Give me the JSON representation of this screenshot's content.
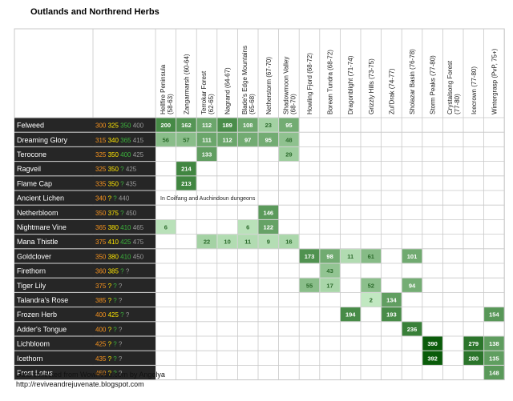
{
  "title": "Outlands and Northrend Herbs",
  "footer": {
    "line1": "Data collected from Wowhead.com by Angelya",
    "line2": "http://reviveandrejuvenate.blogspot.com"
  },
  "colors": {
    "row_label_bg": "#262626",
    "row_label_text": "#ffffff",
    "skill_orange": "#f7931e",
    "skill_yellow": "#ffe600",
    "skill_green": "#3cb43c",
    "skill_gray": "#9a9a9a",
    "grid_line": "#c8c8c8",
    "heat_low": "#ccf0cc",
    "heat_high": "#0a5c0a"
  },
  "chart_data": {
    "type": "heatmap",
    "title": "Outlands and Northrend Herbs",
    "value_meaning": "number of nodes / spawn count per zone",
    "zones": [
      "Hellfire Peninsula (58-63)",
      "Zangarmarsh (60-64)",
      "Terrokar Forest (62-65)",
      "Nagrand (64-67)",
      "Blade's Edge Mountains (65-68)",
      "Netherstorm (67-70)",
      "Shadowmoon Valley (68-70)",
      "Howling Fjord (68-72)",
      "Borean Tundra (68-72)",
      "Dragonblight (71-74)",
      "Grizzly Hills (73-75)",
      "Zul'Drak (74-77)",
      "Sholazar Basin (76-78)",
      "Storm Peaks (77-80)",
      "Crystalsong Forest (77-80)",
      "Icecrown (77-80)",
      "Wintergrasp (PvP, 75+)"
    ],
    "herbs": [
      {
        "name": "Felweed",
        "skill": [
          "300",
          "325",
          "350",
          "400"
        ],
        "values": {
          "0": 200,
          "1": 162,
          "2": 112,
          "3": 189,
          "4": 108,
          "5": 23,
          "6": 95
        }
      },
      {
        "name": "Dreaming Glory",
        "skill": [
          "315",
          "340",
          "365",
          "415"
        ],
        "values": {
          "0": 56,
          "1": 57,
          "2": 111,
          "3": 112,
          "4": 97,
          "5": 95,
          "6": 48
        }
      },
      {
        "name": "Terocone",
        "skill": [
          "325",
          "350",
          "400",
          "425"
        ],
        "values": {
          "2": 133,
          "6": 29
        }
      },
      {
        "name": "Ragveil",
        "skill": [
          "325",
          "350",
          "?",
          "425"
        ],
        "values": {
          "1": 214
        }
      },
      {
        "name": "Flame Cap",
        "skill": [
          "335",
          "350",
          "?",
          "435"
        ],
        "values": {
          "1": 213
        }
      },
      {
        "name": "Ancient Lichen",
        "skill": [
          "340",
          "?",
          "?",
          "440"
        ],
        "values": {},
        "note": "In Coilfang and Auchindoun dungeons"
      },
      {
        "name": "Netherbloom",
        "skill": [
          "350",
          "375",
          "?",
          "450"
        ],
        "values": {
          "5": 146
        }
      },
      {
        "name": "Nightmare Vine",
        "skill": [
          "365",
          "380",
          "410",
          "465"
        ],
        "values": {
          "0": 6,
          "4": 6,
          "5": 122
        }
      },
      {
        "name": "Mana Thistle",
        "skill": [
          "375",
          "410",
          "425",
          "475"
        ],
        "values": {
          "2": 22,
          "3": 10,
          "4": 11,
          "5": 9,
          "6": 16
        }
      },
      {
        "name": "Goldclover",
        "skill": [
          "350",
          "380",
          "410",
          "450"
        ],
        "values": {
          "7": 173,
          "8": 98,
          "9": 11,
          "10": 61,
          "12": 101
        }
      },
      {
        "name": "Firethorn",
        "skill": [
          "360",
          "385",
          "?",
          "?"
        ],
        "values": {
          "8": 43
        }
      },
      {
        "name": "Tiger Lily",
        "skill": [
          "375",
          "?",
          "?",
          "?"
        ],
        "values": {
          "7": 55,
          "8": 17,
          "10": 52,
          "12": 94
        }
      },
      {
        "name": "Talandra's Rose",
        "skill": [
          "385",
          "?",
          "?",
          "?"
        ],
        "values": {
          "10": 2,
          "11": 134
        }
      },
      {
        "name": "Frozen Herb",
        "skill": [
          "400",
          "425",
          "?",
          "?"
        ],
        "values": {
          "9": 194,
          "11": 193,
          "16": 154
        }
      },
      {
        "name": "Adder's Tongue",
        "skill": [
          "400",
          "?",
          "?",
          "?"
        ],
        "values": {
          "12": 236
        }
      },
      {
        "name": "Lichbloom",
        "skill": [
          "425",
          "?",
          "?",
          "?"
        ],
        "values": {
          "13": 390,
          "15": 279,
          "16": 138
        }
      },
      {
        "name": "Icethorn",
        "skill": [
          "435",
          "?",
          "?",
          "?"
        ],
        "values": {
          "13": 392,
          "15": 280,
          "16": 135
        }
      },
      {
        "name": "Frost Lotus",
        "skill": [
          "450",
          "?",
          "?",
          "?"
        ],
        "values": {
          "16": 148
        }
      }
    ]
  }
}
